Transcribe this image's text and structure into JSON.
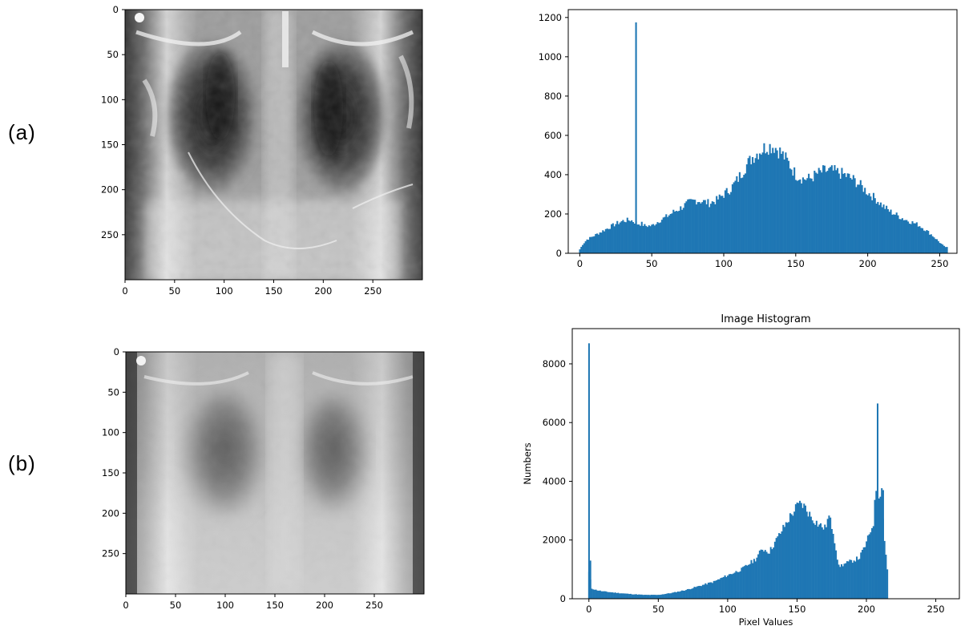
{
  "panel_labels": {
    "a": "(a)",
    "b": "(b)"
  },
  "colors": {
    "bar": "#1f77b4",
    "axis": "#000000"
  },
  "images": [
    {
      "label": "(a)",
      "content": "contrast-enhanced chest X-ray",
      "xticks": [
        "0",
        "50",
        "100",
        "150",
        "200",
        "250"
      ],
      "yticks": [
        "0",
        "50",
        "100",
        "150",
        "200",
        "250"
      ]
    },
    {
      "label": "(b)",
      "content": "original chest X-ray",
      "xticks": [
        "0",
        "50",
        "100",
        "150",
        "200",
        "250"
      ],
      "yticks": [
        "0",
        "50",
        "100",
        "150",
        "200",
        "250"
      ]
    }
  ],
  "chart_data": [
    {
      "type": "bar",
      "panel": "(a)",
      "title": "",
      "xlabel": "",
      "ylabel": "",
      "xlim": [
        -8,
        262
      ],
      "ylim": [
        0,
        1240
      ],
      "xticks": [
        0,
        50,
        100,
        150,
        200,
        250
      ],
      "yticks": [
        0,
        200,
        400,
        600,
        800,
        1000,
        1200
      ],
      "grid": false,
      "profile_points": [
        [
          0,
          20
        ],
        [
          2,
          45
        ],
        [
          5,
          70
        ],
        [
          10,
          90
        ],
        [
          15,
          110
        ],
        [
          20,
          130
        ],
        [
          25,
          150
        ],
        [
          30,
          165
        ],
        [
          35,
          170
        ],
        [
          38,
          160
        ],
        [
          40,
          150
        ],
        [
          43,
          150
        ],
        [
          45,
          140
        ],
        [
          50,
          140
        ],
        [
          55,
          165
        ],
        [
          60,
          185
        ],
        [
          65,
          210
        ],
        [
          70,
          230
        ],
        [
          75,
          255
        ],
        [
          80,
          270
        ],
        [
          85,
          265
        ],
        [
          90,
          255
        ],
        [
          95,
          270
        ],
        [
          100,
          300
        ],
        [
          105,
          330
        ],
        [
          110,
          380
        ],
        [
          115,
          440
        ],
        [
          120,
          490
        ],
        [
          125,
          520
        ],
        [
          130,
          545
        ],
        [
          135,
          545
        ],
        [
          140,
          510
        ],
        [
          145,
          460
        ],
        [
          150,
          400
        ],
        [
          155,
          380
        ],
        [
          160,
          380
        ],
        [
          165,
          405
        ],
        [
          170,
          420
        ],
        [
          175,
          420
        ],
        [
          180,
          410
        ],
        [
          185,
          395
        ],
        [
          190,
          375
        ],
        [
          195,
          345
        ],
        [
          200,
          310
        ],
        [
          205,
          280
        ],
        [
          210,
          245
        ],
        [
          215,
          215
        ],
        [
          220,
          195
        ],
        [
          225,
          175
        ],
        [
          230,
          160
        ],
        [
          235,
          145
        ],
        [
          240,
          120
        ],
        [
          245,
          90
        ],
        [
          250,
          55
        ],
        [
          253,
          35
        ],
        [
          255,
          30
        ]
      ],
      "spikes": [
        {
          "x": 39,
          "y": 1175
        }
      ]
    },
    {
      "type": "bar",
      "panel": "(b)",
      "title": "Image Histogram",
      "xlabel": "Pixel Values",
      "ylabel": "Numbers",
      "xlim": [
        -12,
        267
      ],
      "ylim": [
        0,
        9200
      ],
      "xticks": [
        0,
        50,
        100,
        150,
        200,
        250
      ],
      "yticks": [
        0,
        2000,
        4000,
        6000,
        8000
      ],
      "grid": false,
      "profile_points": [
        [
          0,
          900
        ],
        [
          2,
          350
        ],
        [
          5,
          300
        ],
        [
          10,
          250
        ],
        [
          20,
          200
        ],
        [
          30,
          160
        ],
        [
          40,
          130
        ],
        [
          50,
          130
        ],
        [
          60,
          200
        ],
        [
          70,
          300
        ],
        [
          80,
          440
        ],
        [
          90,
          580
        ],
        [
          100,
          800
        ],
        [
          110,
          1000
        ],
        [
          120,
          1350
        ],
        [
          125,
          1700
        ],
        [
          130,
          1600
        ],
        [
          135,
          2000
        ],
        [
          140,
          2400
        ],
        [
          145,
          2800
        ],
        [
          150,
          3150
        ],
        [
          153,
          3250
        ],
        [
          156,
          3100
        ],
        [
          160,
          2800
        ],
        [
          165,
          2550
        ],
        [
          170,
          2400
        ],
        [
          173,
          2800
        ],
        [
          176,
          2300
        ],
        [
          180,
          1100
        ],
        [
          185,
          1200
        ],
        [
          190,
          1300
        ],
        [
          195,
          1400
        ],
        [
          200,
          1900
        ],
        [
          205,
          2600
        ],
        [
          207,
          3800
        ],
        [
          209,
          3600
        ],
        [
          211,
          3700
        ],
        [
          213,
          2000
        ],
        [
          215,
          1000
        ],
        [
          216,
          0
        ],
        [
          255,
          0
        ]
      ],
      "spikes": [
        {
          "x": 0,
          "y": 8700
        },
        {
          "x": 1,
          "y": 1300
        },
        {
          "x": 208,
          "y": 6650
        },
        {
          "x": 212,
          "y": 3700
        }
      ]
    }
  ]
}
